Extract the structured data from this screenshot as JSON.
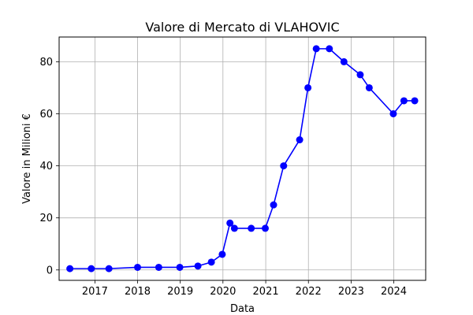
{
  "chart_data": {
    "type": "line",
    "title": "Valore di Mercato di VLAHOVIC",
    "xlabel": "Data",
    "ylabel": "Valore in Milioni €",
    "x_ticks": [
      "2017",
      "2018",
      "2019",
      "2020",
      "2021",
      "2022",
      "2023",
      "2024"
    ],
    "y_ticks": [
      "0",
      "20",
      "40",
      "60",
      "80"
    ],
    "xlim": [
      "2016-03-01",
      "2024-09-30"
    ],
    "ylim": [
      -4,
      89.5
    ],
    "grid": true,
    "series": [
      {
        "color": "#0000ff",
        "marker": "circle",
        "points": [
          {
            "x": "2016-06-01",
            "y": 0.5
          },
          {
            "x": "2016-12-01",
            "y": 0.5
          },
          {
            "x": "2017-05-01",
            "y": 0.5
          },
          {
            "x": "2018-01-01",
            "y": 1
          },
          {
            "x": "2018-07-01",
            "y": 1
          },
          {
            "x": "2018-12-28",
            "y": 1
          },
          {
            "x": "2019-06-01",
            "y": 1.5
          },
          {
            "x": "2019-09-24",
            "y": 3
          },
          {
            "x": "2019-12-26",
            "y": 6
          },
          {
            "x": "2020-03-01",
            "y": 18
          },
          {
            "x": "2020-04-08",
            "y": 16
          },
          {
            "x": "2020-08-30",
            "y": 16
          },
          {
            "x": "2020-12-28",
            "y": 16
          },
          {
            "x": "2021-03-09",
            "y": 25
          },
          {
            "x": "2021-06-03",
            "y": 40
          },
          {
            "x": "2021-10-18",
            "y": 50
          },
          {
            "x": "2021-12-28",
            "y": 70
          },
          {
            "x": "2022-03-09",
            "y": 85
          },
          {
            "x": "2022-06-29",
            "y": 85
          },
          {
            "x": "2022-11-01",
            "y": 80
          },
          {
            "x": "2023-03-20",
            "y": 75
          },
          {
            "x": "2023-06-05",
            "y": 70
          },
          {
            "x": "2023-12-28",
            "y": 60
          },
          {
            "x": "2024-03-28",
            "y": 65
          },
          {
            "x": "2024-06-28",
            "y": 65
          }
        ]
      }
    ]
  }
}
